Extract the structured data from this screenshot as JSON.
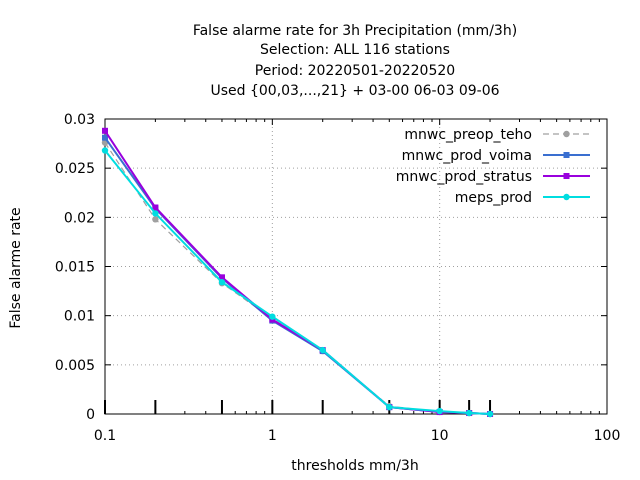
{
  "chart_data": {
    "type": "line",
    "title_lines": [
      "False alarme rate  for 3h Precipitation (mm/3h)",
      "Selection: ALL    116 stations",
      "Period: 20220501-20220520",
      "Used {00,03,...,21} + 03-00 06-03 09-06"
    ],
    "xlabel": "thresholds mm/3h",
    "ylabel": "False alarme rate",
    "x_scale": "log",
    "xlim": [
      0.1,
      100
    ],
    "ylim": [
      0,
      0.03
    ],
    "x_ticks": [
      0.1,
      1,
      10,
      100
    ],
    "x_tick_labels": [
      "0.1",
      "1",
      "10",
      "100"
    ],
    "y_ticks": [
      0,
      0.005,
      0.01,
      0.015,
      0.02,
      0.025,
      0.03
    ],
    "y_tick_labels": [
      "0",
      "0.005",
      "0.01",
      "0.015",
      "0.02",
      "0.025",
      "0.03"
    ],
    "grid": true,
    "legend_position": "top-right",
    "threshold_marks": [
      0.1,
      0.2,
      0.5,
      1,
      2,
      5,
      10,
      15,
      20
    ],
    "x": [
      0.1,
      0.2,
      0.5,
      1,
      2,
      5,
      10,
      15,
      20
    ],
    "series": [
      {
        "name": "mnwc_preop_teho",
        "color": "#a0a0a0",
        "dashed": true,
        "marker": "circle",
        "values": [
          0.0276,
          0.0198,
          0.0133,
          0.0097,
          0.0064,
          0.0008,
          0.0002,
          0.0001,
          0.0
        ]
      },
      {
        "name": "mnwc_prod_voima",
        "color": "#3a6fd0",
        "dashed": false,
        "marker": "square",
        "values": [
          0.0281,
          0.0209,
          0.0138,
          0.0095,
          0.0064,
          0.0007,
          0.0002,
          0.0001,
          0.0
        ]
      },
      {
        "name": "mnwc_prod_stratus",
        "color": "#9900dd",
        "dashed": false,
        "marker": "square",
        "values": [
          0.0288,
          0.021,
          0.0139,
          0.0096,
          0.0065,
          0.0007,
          0.0002,
          0.0001,
          0.0
        ]
      },
      {
        "name": "meps_prod",
        "color": "#00dde0",
        "dashed": false,
        "marker": "circle",
        "values": [
          0.0268,
          0.0204,
          0.0134,
          0.0099,
          0.0065,
          0.0007,
          0.0003,
          0.0001,
          0.0
        ]
      }
    ]
  }
}
